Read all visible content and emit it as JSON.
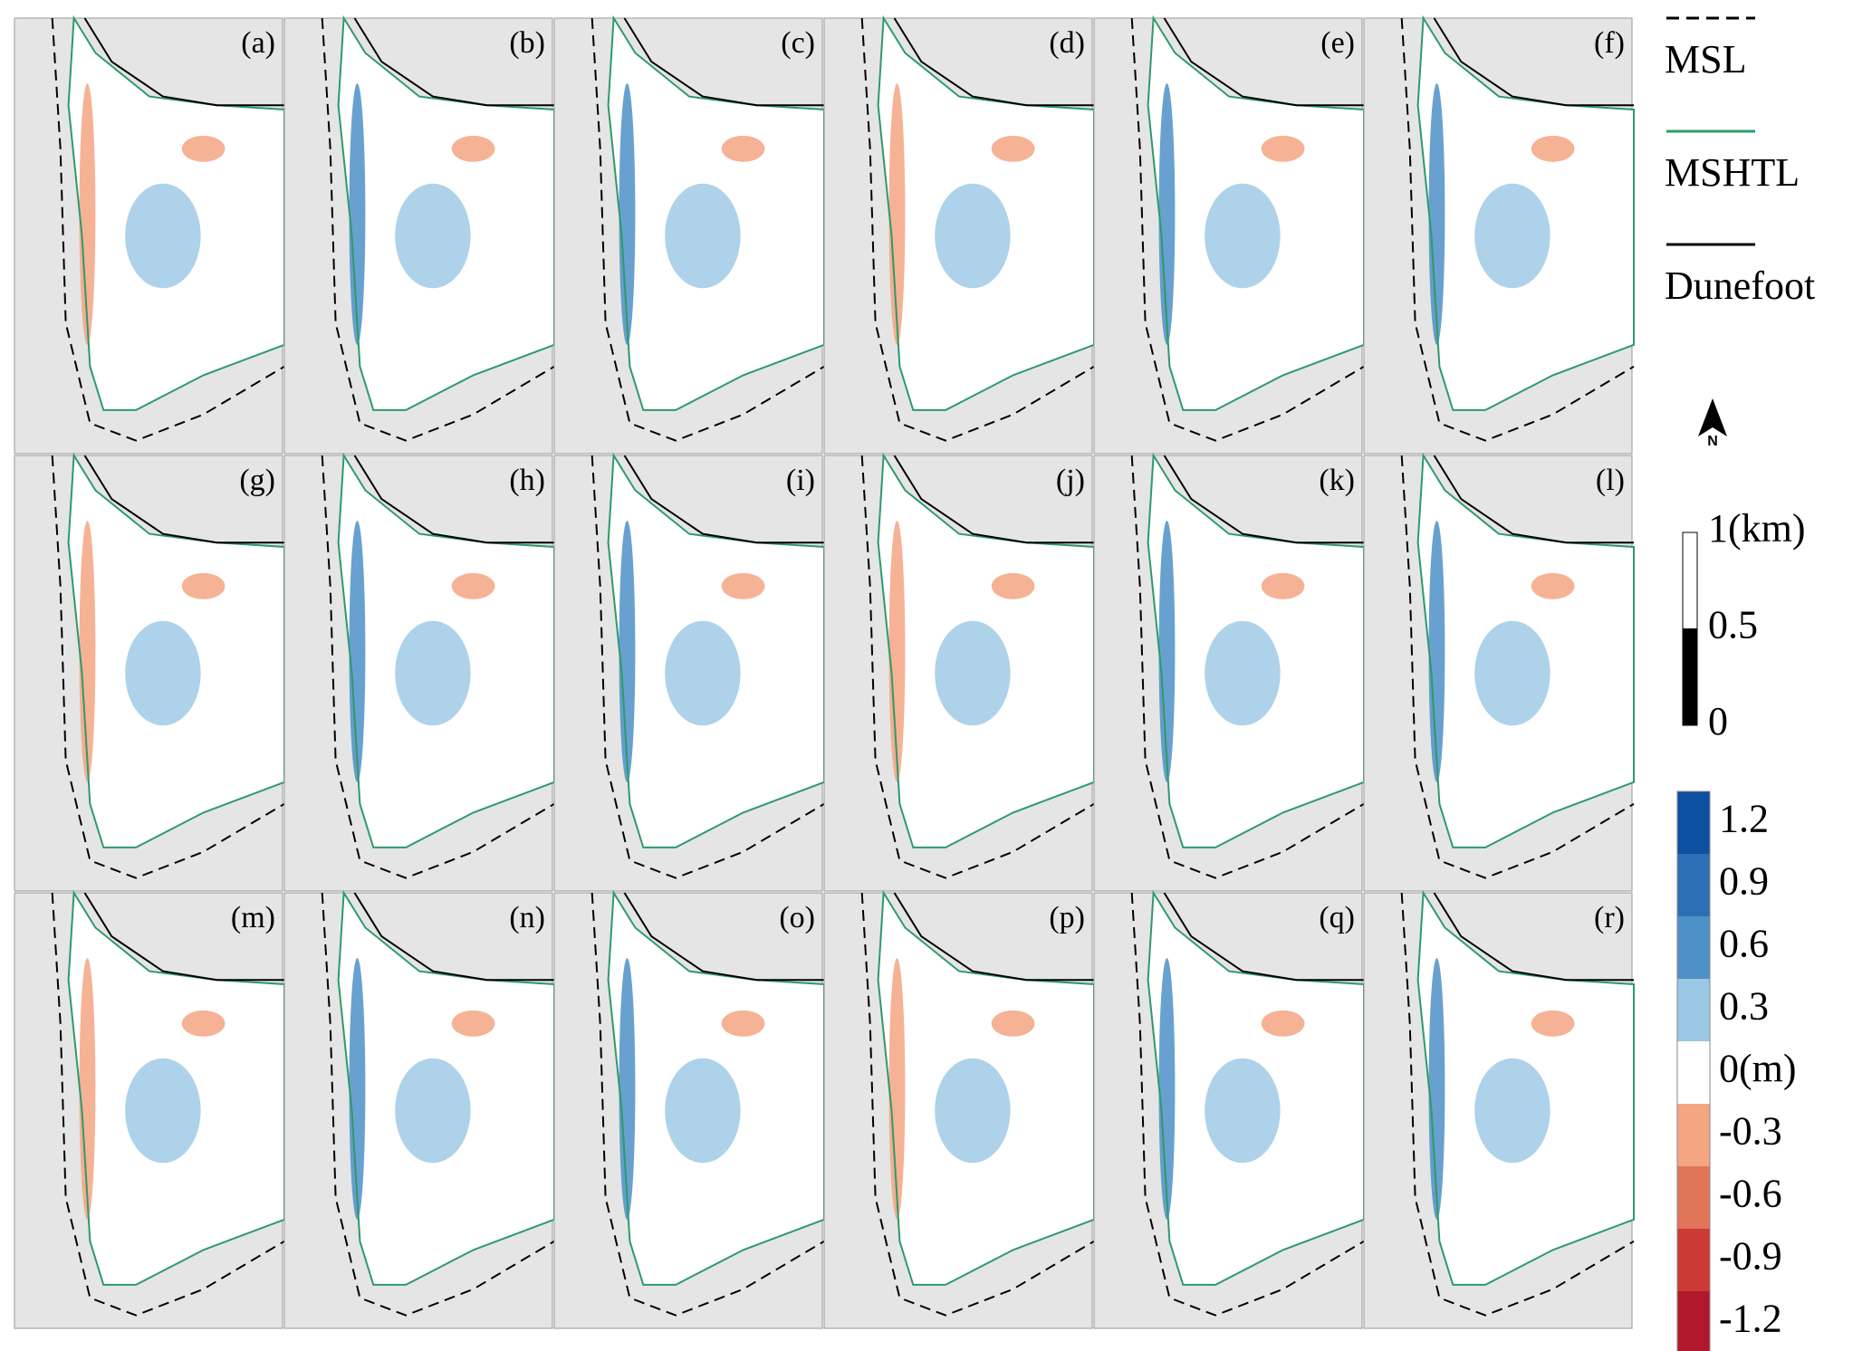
{
  "panels": {
    "labels": [
      "(a)",
      "(b)",
      "(c)",
      "(d)",
      "(e)",
      "(f)",
      "(g)",
      "(h)",
      "(i)",
      "(j)",
      "(k)",
      "(l)",
      "(m)",
      "(n)",
      "(o)",
      "(p)",
      "(q)",
      "(r)"
    ]
  },
  "legend": {
    "items": [
      {
        "label": "MSL",
        "color": "#000000",
        "dash": true
      },
      {
        "label": "MSHTL",
        "color": "#2e9a6a",
        "dash": false
      },
      {
        "label": "Dunefoot",
        "color": "#000000",
        "dash": false
      }
    ]
  },
  "north_arrow": {
    "label": "N"
  },
  "scale_bar": {
    "ticks": [
      0,
      0.5,
      {
        "value": 1,
        "label": "1(km)"
      }
    ]
  },
  "colorbar": {
    "ticks": [
      1.2,
      0.9,
      0.6,
      0.3,
      {
        "value": 0,
        "label": "0(m)"
      },
      -0.3,
      -0.6,
      -0.9,
      -1.2
    ],
    "colors": [
      "#0d4fa0",
      "#2d6fb5",
      "#4d91c8",
      "#9ac7e4",
      "#ffffff",
      "#f4a582",
      "#e0755a",
      "#cc3a36",
      "#b2182b"
    ]
  }
}
